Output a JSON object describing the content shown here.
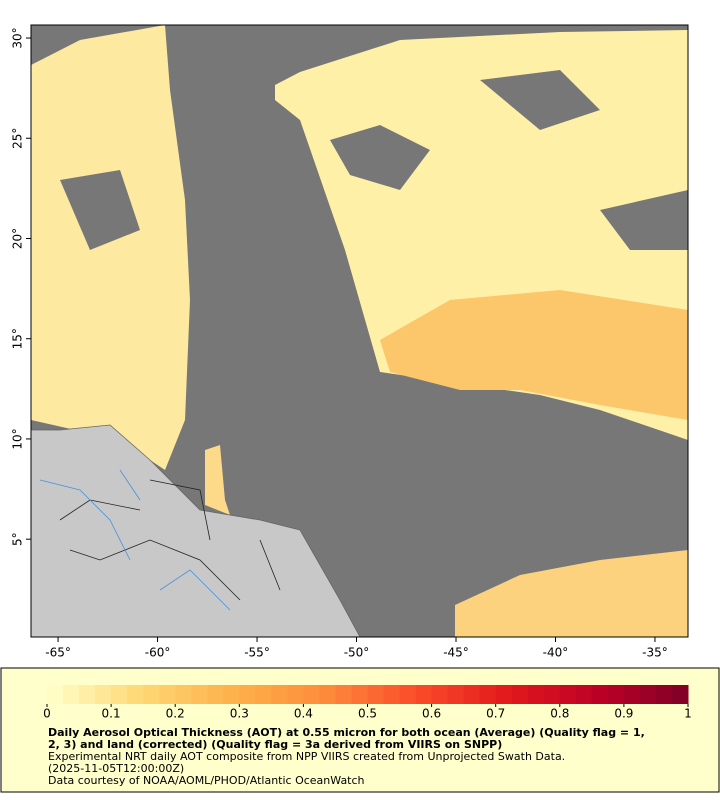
{
  "map": {
    "xlim": [
      -66.36,
      -33.34
    ],
    "ylim": [
      0.12,
      30.65
    ],
    "xticks": [
      {
        "value": -65,
        "label": "-65°"
      },
      {
        "value": -60,
        "label": "-60°"
      },
      {
        "value": -55,
        "label": "-55°"
      },
      {
        "value": -50,
        "label": "-50°"
      },
      {
        "value": -45,
        "label": "-45°"
      },
      {
        "value": -40,
        "label": "-40°"
      },
      {
        "value": -35,
        "label": "-35°"
      }
    ],
    "yticks": [
      {
        "value": 5,
        "label": "5°"
      },
      {
        "value": 10,
        "label": "10°"
      },
      {
        "value": 15,
        "label": "15°"
      },
      {
        "value": 20,
        "label": "20°"
      },
      {
        "value": 25,
        "label": "25°"
      },
      {
        "value": 30,
        "label": "30°"
      }
    ]
  },
  "colorbar": {
    "range": [
      0,
      1
    ],
    "ticks": [
      0,
      0.1,
      0.2,
      0.3,
      0.4,
      0.5,
      0.6,
      0.7,
      0.8,
      0.9,
      1
    ],
    "colors": [
      "#ffffcc",
      "#fed976",
      "#feb24c",
      "#fd8d3c",
      "#fc4e2a",
      "#e31a1c",
      "#bd0026",
      "#800026"
    ]
  },
  "caption": {
    "title_lines": [
      "Daily Aerosol Optical Thickness (AOT) at 0.55 micron for both ocean (Average) (Quality flag = 1,",
      "2, 3) and land (corrected) (Quality flag = 3a derived from VIIRS on SNPP)"
    ],
    "lines": [
      "Experimental NRT daily AOT composite from NPP VIIRS created from Unprojected Swath Data.",
      "(2025-11-05T12:00:00Z)",
      "Data courtesy of NOAA/AOML/PHOD/Atlantic OceanWatch"
    ]
  }
}
